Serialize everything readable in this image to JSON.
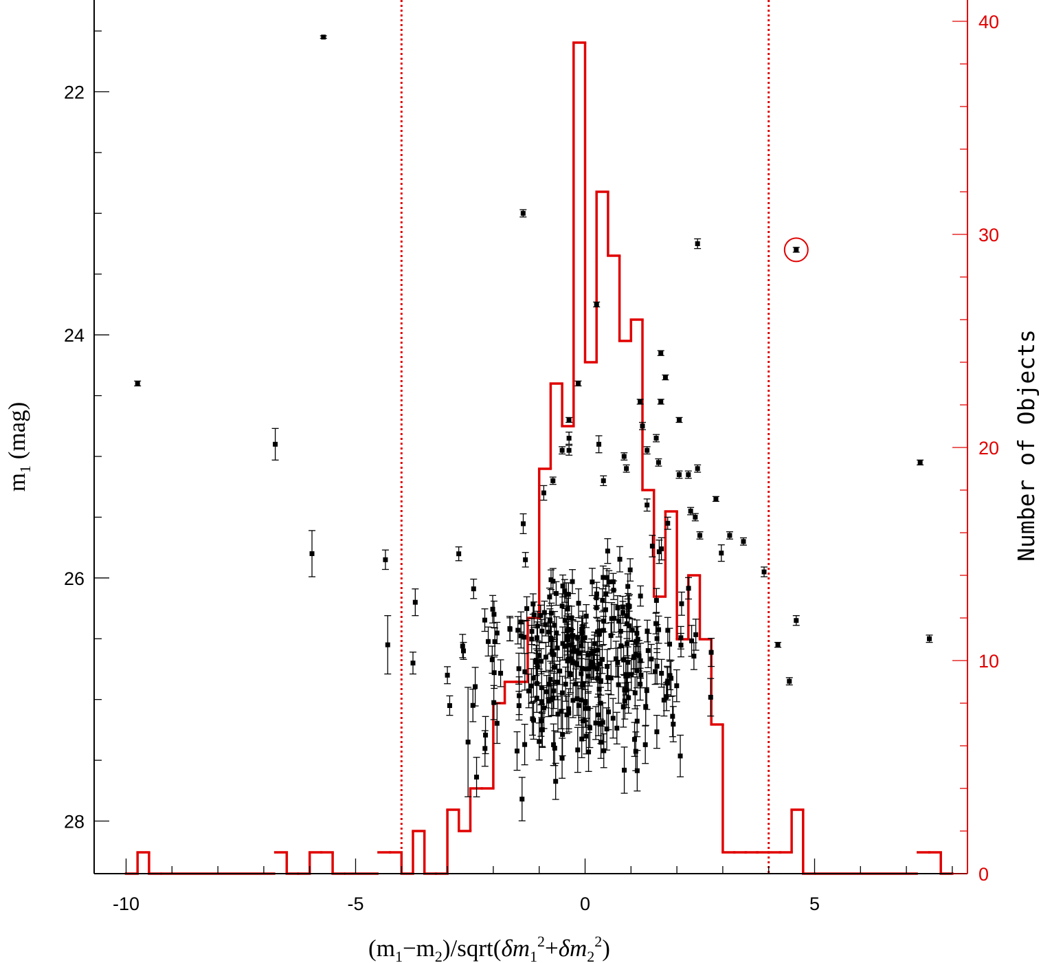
{
  "chart_data": {
    "type": "scatter",
    "title": "",
    "xlabel": {
      "prefix": "(m",
      "sub1": "1",
      "mid": "−m",
      "sub2": "2",
      "mid2": ")/sqrt(",
      "delta1": "δm",
      "sub3": "1",
      "sup1": "2",
      "plus": "+",
      "delta2": "δm",
      "sub4": "2",
      "sup2": "2",
      "suffix": ")"
    },
    "ylabel": {
      "m": "m",
      "sub": "1",
      "rest": " (mag)"
    },
    "y2label": "Number of Objects",
    "xlim": [
      -10.9,
      8.1
    ],
    "ylim": [
      28.35,
      21.4
    ],
    "y2lim": [
      0,
      40.7
    ],
    "x_ticks": [
      -10,
      -5,
      0,
      5
    ],
    "x_tick_labels": [
      "-10",
      "-5",
      "0",
      "5"
    ],
    "y_ticks": [
      22,
      24,
      26,
      28
    ],
    "y_tick_labels": [
      "22",
      "24",
      "26",
      "28"
    ],
    "y2_ticks": [
      0,
      10,
      20,
      30,
      40
    ],
    "y2_tick_labels": [
      "0",
      "10",
      "20",
      "30",
      "40"
    ],
    "cut_lines": [
      -4,
      4
    ],
    "colors": {
      "points": "#000000",
      "histogram": "#e00000",
      "axes": "#000000",
      "right_axis": "#e00000"
    },
    "points_labeled": [
      {
        "x": -9.75,
        "y": 24.4,
        "err": 0.02
      },
      {
        "x": -5.7,
        "y": 21.55,
        "err": 0.01
      },
      {
        "x": -6.75,
        "y": 24.9,
        "err": 0.13
      },
      {
        "x": -5.95,
        "y": 25.8,
        "err": 0.19
      },
      {
        "x": -4.35,
        "y": 25.85,
        "err": 0.08
      },
      {
        "x": -4.3,
        "y": 26.55,
        "err": 0.24
      },
      {
        "x": -3.7,
        "y": 26.2,
        "err": 0.11
      },
      {
        "x": -3.75,
        "y": 26.7,
        "err": 0.09
      },
      {
        "x": -3.0,
        "y": 26.8,
        "err": 0.07
      },
      {
        "x": -2.95,
        "y": 27.05,
        "err": 0.08
      },
      {
        "x": -2.65,
        "y": 26.6,
        "err": 0.07
      },
      {
        "x": -2.55,
        "y": 27.35,
        "err": 0.45
      },
      {
        "x": -1.35,
        "y": 23.0,
        "err": 0.03
      },
      {
        "x": -1.3,
        "y": 25.85,
        "err": 0.06
      },
      {
        "x": -0.9,
        "y": 25.3,
        "err": 0.06
      },
      {
        "x": -0.7,
        "y": 25.2,
        "err": 0.03
      },
      {
        "x": -0.35,
        "y": 24.7,
        "err": 0.02
      },
      {
        "x": -0.5,
        "y": 24.95,
        "err": 0.03
      },
      {
        "x": -0.35,
        "y": 24.95,
        "err": 0.04
      },
      {
        "x": -0.35,
        "y": 24.85,
        "err": 0.05
      },
      {
        "x": -0.15,
        "y": 24.4,
        "err": 0.02
      },
      {
        "x": 0.25,
        "y": 23.75,
        "err": 0.02
      },
      {
        "x": 0.3,
        "y": 24.9,
        "err": 0.07
      },
      {
        "x": 0.4,
        "y": 25.2,
        "err": 0.04
      },
      {
        "x": 0.85,
        "y": 25.0,
        "err": 0.03
      },
      {
        "x": 0.9,
        "y": 25.1,
        "err": 0.03
      },
      {
        "x": 1.2,
        "y": 24.55,
        "err": 0.02
      },
      {
        "x": 1.25,
        "y": 24.75,
        "err": 0.03
      },
      {
        "x": 1.35,
        "y": 25.4,
        "err": 0.05
      },
      {
        "x": 1.35,
        "y": 24.95,
        "err": 0.03
      },
      {
        "x": 1.55,
        "y": 24.85,
        "err": 0.03
      },
      {
        "x": 1.6,
        "y": 25.05,
        "err": 0.03
      },
      {
        "x": 1.65,
        "y": 24.15,
        "err": 0.02
      },
      {
        "x": 1.65,
        "y": 24.55,
        "err": 0.02
      },
      {
        "x": 1.75,
        "y": 24.35,
        "err": 0.02
      },
      {
        "x": 1.8,
        "y": 25.55,
        "err": 0.05
      },
      {
        "x": 2.05,
        "y": 24.7,
        "err": 0.02
      },
      {
        "x": 2.05,
        "y": 25.15,
        "err": 0.03
      },
      {
        "x": 2.25,
        "y": 25.15,
        "err": 0.03
      },
      {
        "x": 2.3,
        "y": 25.45,
        "err": 0.03
      },
      {
        "x": 2.4,
        "y": 25.5,
        "err": 0.03
      },
      {
        "x": 2.45,
        "y": 25.1,
        "err": 0.03
      },
      {
        "x": 2.5,
        "y": 25.65,
        "err": 0.03
      },
      {
        "x": 2.45,
        "y": 23.25,
        "err": 0.04
      },
      {
        "x": 2.85,
        "y": 25.35,
        "err": 0.02
      },
      {
        "x": 3.15,
        "y": 25.65,
        "err": 0.03
      },
      {
        "x": 3.45,
        "y": 25.7,
        "err": 0.03
      },
      {
        "x": 3.9,
        "y": 25.95,
        "err": 0.04
      },
      {
        "x": 4.2,
        "y": 26.55,
        "err": 0.02
      },
      {
        "x": 4.45,
        "y": 26.85,
        "err": 0.03
      },
      {
        "x": 4.6,
        "y": 23.3,
        "err": 0.02
      },
      {
        "x": 4.6,
        "y": 26.35,
        "err": 0.04
      },
      {
        "x": 7.3,
        "y": 25.05,
        "err": 0.02
      },
      {
        "x": 7.5,
        "y": 26.5,
        "err": 0.03
      }
    ],
    "cloud": {
      "n": 300,
      "x_mean": 0.0,
      "x_sd": 1.15,
      "y_mean": 26.65,
      "y_sd": 0.42,
      "seed": 7
    },
    "histogram": {
      "bin_width": 0.25,
      "bins": [
        {
          "x0": -10.0,
          "count": 0
        },
        {
          "x0": -9.75,
          "count": 1
        },
        {
          "x0": -9.5,
          "count": 0
        },
        {
          "x0": -6.75,
          "count": 1
        },
        {
          "x0": -6.5,
          "count": 0
        },
        {
          "x0": -6.25,
          "count": 0
        },
        {
          "x0": -6.0,
          "count": 1
        },
        {
          "x0": -5.75,
          "count": 1
        },
        {
          "x0": -5.5,
          "count": 0
        },
        {
          "x0": -4.5,
          "count": 1
        },
        {
          "x0": -4.25,
          "count": 1
        },
        {
          "x0": -4.0,
          "count": 0
        },
        {
          "x0": -3.75,
          "count": 2
        },
        {
          "x0": -3.5,
          "count": 0
        },
        {
          "x0": -3.25,
          "count": 0
        },
        {
          "x0": -3.0,
          "count": 3
        },
        {
          "x0": -2.75,
          "count": 2
        },
        {
          "x0": -2.5,
          "count": 4
        },
        {
          "x0": -2.25,
          "count": 4
        },
        {
          "x0": -2.0,
          "count": 8
        },
        {
          "x0": -1.75,
          "count": 9
        },
        {
          "x0": -1.5,
          "count": 9
        },
        {
          "x0": -1.25,
          "count": 12
        },
        {
          "x0": -1.0,
          "count": 19
        },
        {
          "x0": -0.75,
          "count": 23
        },
        {
          "x0": -0.5,
          "count": 21
        },
        {
          "x0": -0.25,
          "count": 39
        },
        {
          "x0": 0.0,
          "count": 24
        },
        {
          "x0": 0.25,
          "count": 32
        },
        {
          "x0": 0.5,
          "count": 29
        },
        {
          "x0": 0.75,
          "count": 25
        },
        {
          "x0": 1.0,
          "count": 26
        },
        {
          "x0": 1.25,
          "count": 18
        },
        {
          "x0": 1.5,
          "count": 13
        },
        {
          "x0": 1.75,
          "count": 17
        },
        {
          "x0": 2.0,
          "count": 11
        },
        {
          "x0": 2.25,
          "count": 14
        },
        {
          "x0": 2.5,
          "count": 11
        },
        {
          "x0": 2.75,
          "count": 7
        },
        {
          "x0": 3.0,
          "count": 1
        },
        {
          "x0": 3.25,
          "count": 1
        },
        {
          "x0": 3.5,
          "count": 1
        },
        {
          "x0": 3.75,
          "count": 1
        },
        {
          "x0": 4.0,
          "count": 1
        },
        {
          "x0": 4.25,
          "count": 1
        },
        {
          "x0": 4.5,
          "count": 3
        },
        {
          "x0": 4.75,
          "count": 0
        },
        {
          "x0": 7.25,
          "count": 1
        },
        {
          "x0": 7.5,
          "count": 1
        },
        {
          "x0": 7.75,
          "count": 0
        }
      ]
    },
    "highlighted_point": {
      "x": 4.6,
      "y": 23.3
    }
  }
}
